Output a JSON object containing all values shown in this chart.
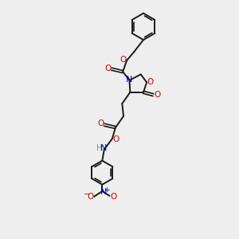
{
  "background_color": "#eeeeee",
  "bond_color": "#1a1a1a",
  "oxygen_color": "#cc0000",
  "nitrogen_color": "#0000cc",
  "hydrogen_color": "#888888",
  "figsize": [
    3.0,
    3.0
  ],
  "dpi": 100,
  "xlim": [
    0,
    10
  ],
  "ylim": [
    0,
    18
  ]
}
